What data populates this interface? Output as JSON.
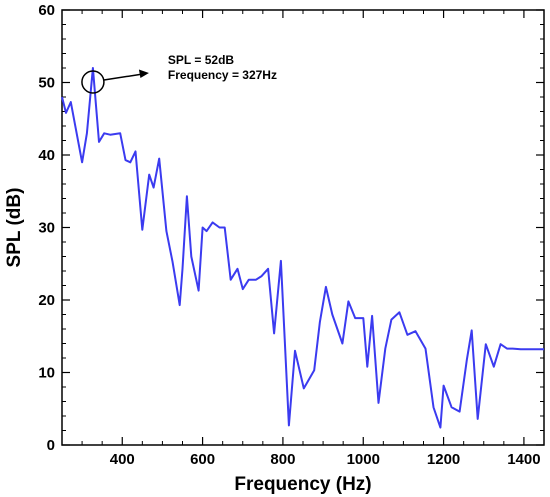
{
  "chart_data": {
    "type": "line",
    "xlabel": "Frequency (Hz)",
    "ylabel": "SPL (dB)",
    "xlim": [
      250,
      1450
    ],
    "ylim": [
      0,
      60
    ],
    "x_ticks": [
      400,
      600,
      800,
      1000,
      1200,
      1400
    ],
    "y_ticks": [
      0,
      10,
      20,
      30,
      40,
      50,
      60
    ],
    "grid": false,
    "line_color": "#3b3bf0",
    "series": [
      {
        "x": [
          250,
          260,
          272,
          300,
          312,
          327,
          342,
          355,
          370,
          395,
          408,
          420,
          433,
          450,
          467,
          478,
          492,
          510,
          525,
          543,
          550,
          561,
          572,
          590,
          600,
          610,
          625,
          642,
          655,
          670,
          687,
          700,
          715,
          733,
          747,
          763,
          778,
          795,
          815,
          830,
          852,
          878,
          892,
          907,
          923,
          948,
          963,
          980,
          1000,
          1010,
          1022,
          1038,
          1055,
          1070,
          1090,
          1110,
          1130,
          1155,
          1175,
          1192,
          1200,
          1220,
          1240,
          1258,
          1270,
          1285,
          1305,
          1325,
          1342,
          1358,
          1372,
          1392,
          1410,
          1430,
          1450
        ],
        "y": [
          48,
          45.8,
          47.3,
          39,
          43,
          52,
          41.8,
          43,
          42.8,
          43,
          39.3,
          39,
          40.5,
          29.7,
          37.3,
          35.5,
          39.5,
          29.5,
          25.3,
          19.3,
          24.3,
          34.3,
          26,
          21.3,
          30,
          29.5,
          30.7,
          30,
          30,
          22.8,
          24.3,
          21.5,
          22.8,
          22.8,
          23.3,
          24.3,
          15.4,
          25.4,
          2.7,
          13,
          7.8,
          10.3,
          17,
          21.8,
          18,
          14,
          19.8,
          17.5,
          17.5,
          10.8,
          17.8,
          5.8,
          13.3,
          17.3,
          18.3,
          15.2,
          15.7,
          13.3,
          5.2,
          2.4,
          8.2,
          5.2,
          4.6,
          11.8,
          15.8,
          3.6,
          13.9,
          10.8,
          13.9,
          13.3,
          13.3,
          13.2,
          13.2,
          13.2,
          13.2
        ]
      }
    ],
    "annotation": {
      "lines": [
        "SPL = 52dB",
        "Frequency = 327Hz"
      ],
      "target_x": 327,
      "target_y": 52
    }
  }
}
